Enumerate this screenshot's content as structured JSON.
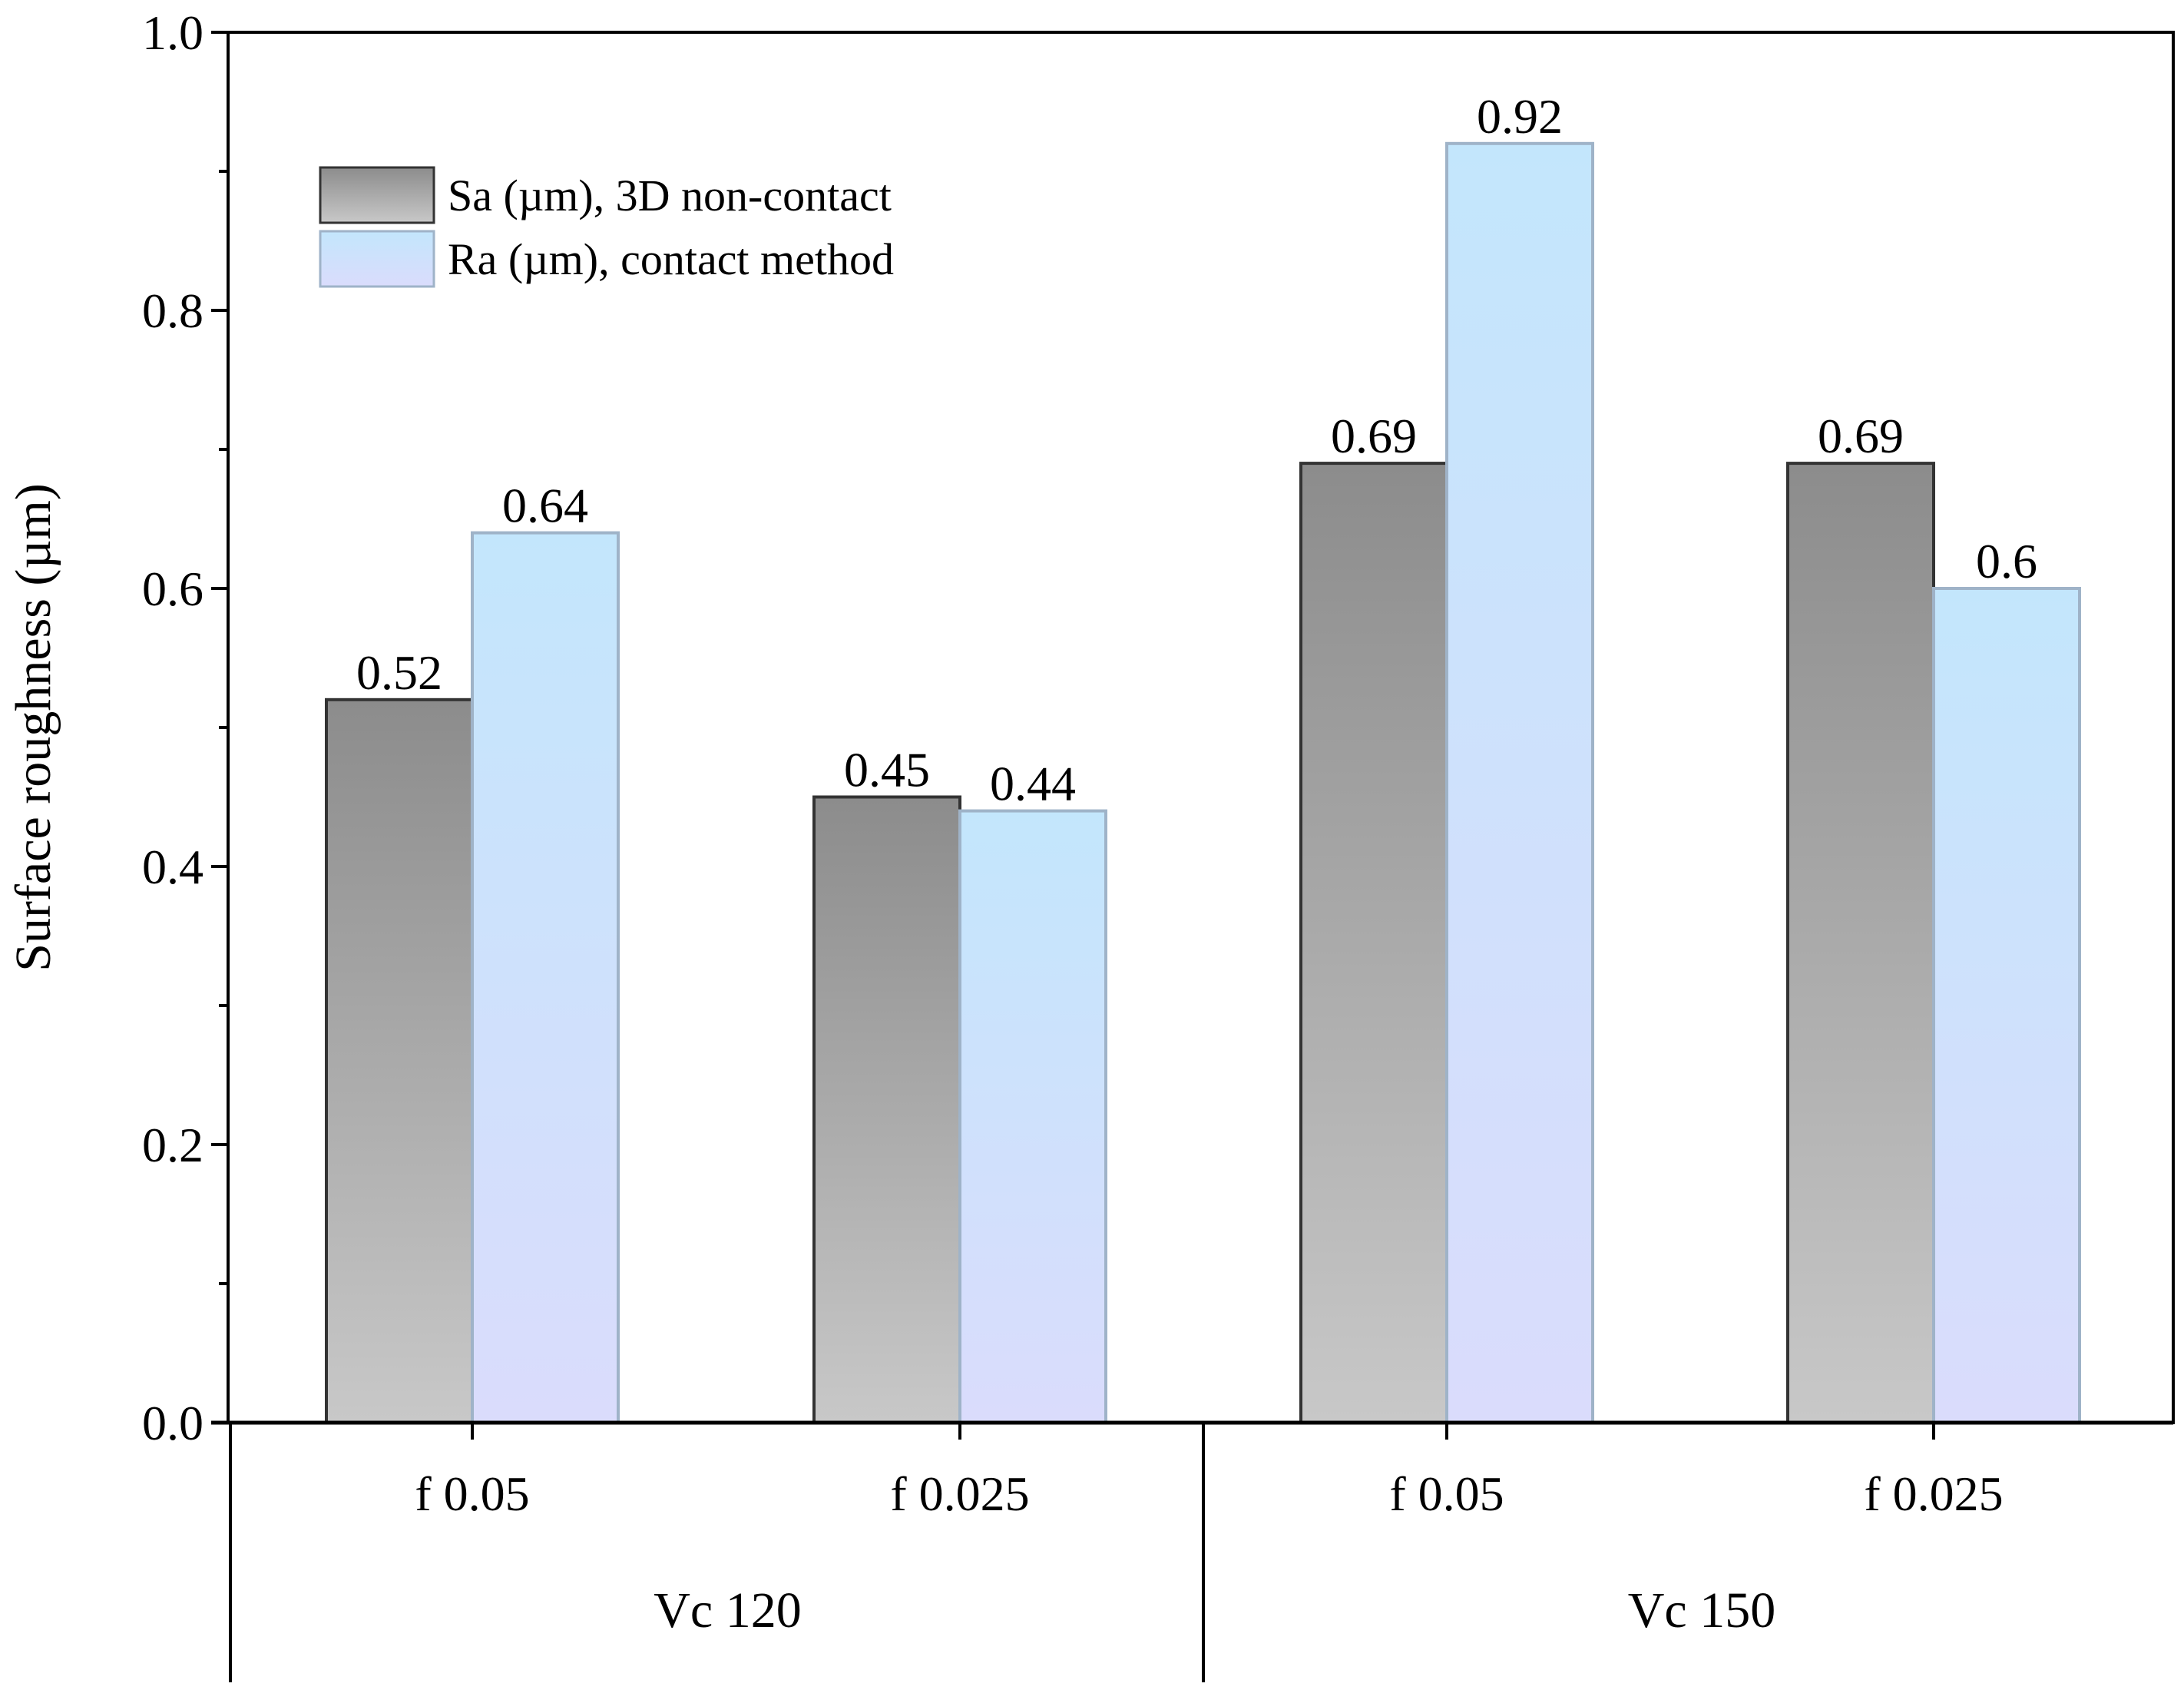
{
  "chart_data": {
    "type": "bar",
    "title": "",
    "xlabel": "",
    "ylabel": "Surface roughness (µm)",
    "ylim": [
      0,
      1.0
    ],
    "yticks": [
      "0.0",
      "0.2",
      "0.4",
      "0.6",
      "0.8",
      "1.0"
    ],
    "categories": [
      "f 0.05",
      "f 0.025",
      "f 0.05",
      "f 0.025"
    ],
    "groups": [
      {
        "label": "Vc 120",
        "categories": [
          0,
          1
        ]
      },
      {
        "label": "Vc 150",
        "categories": [
          2,
          3
        ]
      }
    ],
    "series": [
      {
        "name": "Sa (µm), 3D non-contact",
        "values": [
          0.52,
          0.45,
          0.69,
          0.69
        ],
        "labels": [
          "0.52",
          "0.45",
          "0.69",
          "0.69"
        ]
      },
      {
        "name": "Ra (µm), contact method",
        "values": [
          0.64,
          0.44,
          0.92,
          0.6
        ],
        "labels": [
          "0.64",
          "0.44",
          "0.92",
          "0.6"
        ]
      }
    ],
    "legend_position": "top-left",
    "grid": false,
    "colors": {
      "sa_top": "#8c8c8c",
      "sa_bottom": "#c8c8c8",
      "sa_stroke": "#333333",
      "ra_top": "#c3e6fc",
      "ra_bottom": "#dadcfc",
      "ra_stroke": "#9fb3c8"
    }
  }
}
